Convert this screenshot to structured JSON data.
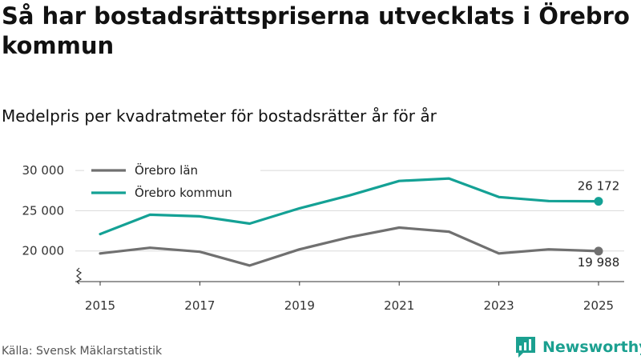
{
  "header": {
    "title": "Så har bostadsrättspriserna utvecklats i Örebro kommun",
    "subtitle": "Medelpris per kvadratmeter för bostadsrätter år för år"
  },
  "footer": {
    "source": "Källa: Svensk Mäklarstatistik",
    "brand": "Newsworthy"
  },
  "colors": {
    "lan": "#707070",
    "kommun": "#14a195",
    "grid": "#d9d9d9",
    "brand": "#1ba090"
  },
  "chart_data": {
    "type": "line",
    "title": "Så har bostadsrättspriserna utvecklats i Örebro kommun",
    "subtitle": "Medelpris per kvadratmeter för bostadsrätter år för år",
    "xlabel": "",
    "ylabel": "",
    "x": [
      2015,
      2016,
      2017,
      2018,
      2019,
      2020,
      2021,
      2022,
      2023,
      2024,
      2025
    ],
    "x_ticks": [
      2015,
      2017,
      2019,
      2021,
      2023,
      2025
    ],
    "x_tick_labels": [
      "2015",
      "2017",
      "2019",
      "2021",
      "2023",
      "2025"
    ],
    "y_ticks": [
      20000,
      25000,
      30000
    ],
    "y_tick_labels": [
      "20 000",
      "25 000",
      "30 000"
    ],
    "ylim": [
      16000,
      31000
    ],
    "y_axis_break": true,
    "grid": true,
    "legend_position": "top-left",
    "series": [
      {
        "name": "Örebro län",
        "color_key": "lan",
        "values": [
          19700,
          20400,
          19900,
          18200,
          20200,
          21700,
          22900,
          22400,
          19700,
          20200,
          19988
        ],
        "end_label": "19 988"
      },
      {
        "name": "Örebro kommun",
        "color_key": "kommun",
        "values": [
          22100,
          24500,
          24300,
          23400,
          25300,
          26900,
          28700,
          29000,
          26700,
          26200,
          26172
        ],
        "end_label": "26 172"
      }
    ]
  }
}
